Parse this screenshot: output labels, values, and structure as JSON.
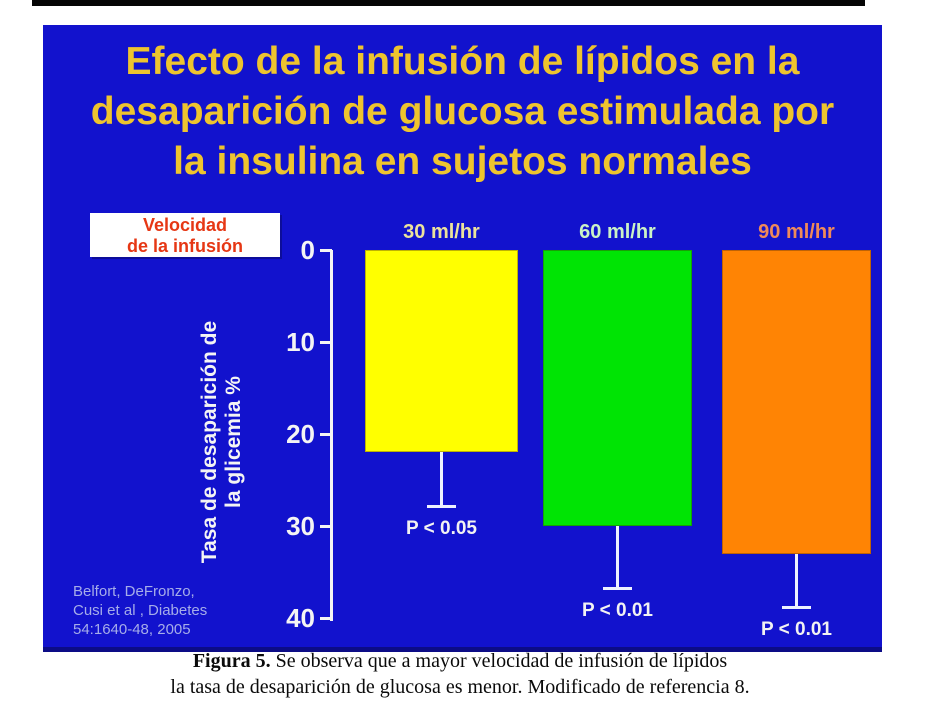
{
  "slide": {
    "title_lines": [
      "Efecto de la infusión de lípidos en la",
      "desaparición de glucosa estimulada por",
      "la insulina en sujetos normales"
    ],
    "background_color": "#1212cd",
    "title_color": "#eec42e"
  },
  "rate_box": {
    "lines": [
      "Velocidad",
      "de la infusión"
    ],
    "text_color": "#e63714",
    "background_color": "#ffffff"
  },
  "chart_data": {
    "type": "bar",
    "title": "",
    "categories": [
      "30 ml/hr",
      "60 ml/hr",
      "90 ml/hr"
    ],
    "values": [
      22,
      30,
      33
    ],
    "error_whisker_to": [
      28,
      37,
      39
    ],
    "p_labels": [
      "P < 0.05",
      "P < 0.01",
      "P < 0.01"
    ],
    "bar_colors": [
      "#ffff00",
      "#00e404",
      "#ff8404"
    ],
    "category_label_colors": [
      "#ece39c",
      "#cbf2c6",
      "#ef8a5a"
    ],
    "ylabel": "Tasa de desaparición de la glicemia %",
    "ylabel_lines": [
      "Tasa de desaparición de",
      "la glicemia %"
    ],
    "yticks": [
      0,
      10,
      20,
      30,
      40
    ],
    "ylim": [
      0,
      40
    ],
    "axis_inverted": true,
    "grid": false,
    "legend": "none",
    "axis_text_color": "#f4f4f4"
  },
  "citation": {
    "lines": [
      "Belfort, DeFronzo,",
      "Cusi et al , Diabetes",
      "54:1640-48, 2005"
    ]
  },
  "caption": {
    "bold": "Figura 5.",
    "line1": "Se observa que a mayor velocidad de infusión de lípidos",
    "line2": "la tasa de desaparición de glucosa es menor. Modificado de referencia 8."
  }
}
